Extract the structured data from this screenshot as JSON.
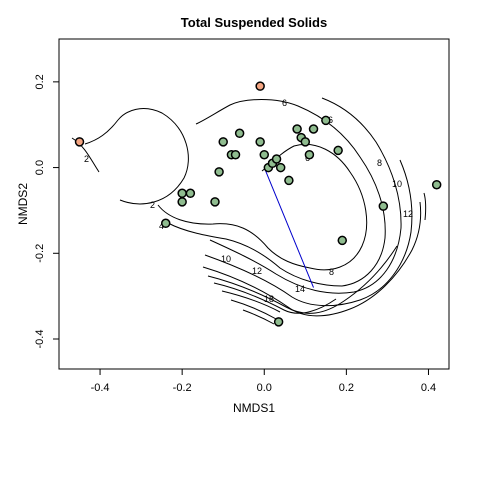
{
  "chart_data": {
    "type": "scatter",
    "title": "Total Suspended Solids",
    "xlabel": "NMDS1",
    "ylabel": "NMDS2",
    "xlim": [
      -0.5,
      0.45
    ],
    "ylim": [
      -0.47,
      0.3
    ],
    "xticks": [
      -0.4,
      -0.2,
      0.0,
      0.2,
      0.4
    ],
    "yticks": [
      -0.4,
      -0.2,
      0.0,
      0.2
    ],
    "xtick_labels": [
      "-0.4",
      "-0.2",
      "0.0",
      "0.2",
      "0.4"
    ],
    "ytick_labels": [
      "-0.4",
      "-0.2",
      "0.0",
      "0.2"
    ],
    "grid": false,
    "colors": {
      "site_fill": "#8fbc8f",
      "outlier_fill": "#f4a582",
      "point_edge": "#000000",
      "contour": "#000000",
      "vector": "#0000cc"
    },
    "points": [
      {
        "x": -0.2,
        "y": -0.08,
        "group": "site"
      },
      {
        "x": -0.2,
        "y": -0.06,
        "group": "site"
      },
      {
        "x": -0.18,
        "y": -0.06,
        "group": "site"
      },
      {
        "x": -0.24,
        "y": -0.13,
        "group": "site"
      },
      {
        "x": -0.12,
        "y": -0.08,
        "group": "site"
      },
      {
        "x": -0.11,
        "y": -0.01,
        "group": "site"
      },
      {
        "x": -0.1,
        "y": 0.06,
        "group": "site"
      },
      {
        "x": -0.08,
        "y": 0.03,
        "group": "site"
      },
      {
        "x": -0.07,
        "y": 0.03,
        "group": "site"
      },
      {
        "x": -0.06,
        "y": 0.08,
        "group": "site"
      },
      {
        "x": -0.01,
        "y": 0.06,
        "group": "site"
      },
      {
        "x": 0.0,
        "y": 0.03,
        "group": "site"
      },
      {
        "x": 0.01,
        "y": 0.0,
        "group": "site"
      },
      {
        "x": 0.02,
        "y": 0.01,
        "group": "site"
      },
      {
        "x": 0.03,
        "y": 0.02,
        "group": "site"
      },
      {
        "x": 0.04,
        "y": 0.0,
        "group": "site"
      },
      {
        "x": 0.06,
        "y": -0.03,
        "group": "site"
      },
      {
        "x": 0.08,
        "y": 0.09,
        "group": "site"
      },
      {
        "x": 0.09,
        "y": 0.07,
        "group": "site"
      },
      {
        "x": 0.1,
        "y": 0.06,
        "group": "site"
      },
      {
        "x": 0.12,
        "y": 0.09,
        "group": "site"
      },
      {
        "x": 0.11,
        "y": 0.03,
        "group": "site"
      },
      {
        "x": 0.15,
        "y": 0.11,
        "group": "site"
      },
      {
        "x": 0.18,
        "y": 0.04,
        "group": "site"
      },
      {
        "x": 0.19,
        "y": -0.17,
        "group": "site"
      },
      {
        "x": 0.29,
        "y": -0.09,
        "group": "site"
      },
      {
        "x": 0.42,
        "y": -0.04,
        "group": "site"
      },
      {
        "x": 0.035,
        "y": -0.36,
        "group": "site"
      },
      {
        "x": -0.45,
        "y": 0.06,
        "group": "outlier"
      },
      {
        "x": -0.01,
        "y": 0.19,
        "group": "outlier"
      }
    ],
    "vector": {
      "x0": 0.0,
      "y0": 0.0,
      "x1": 0.12,
      "y1": -0.28
    },
    "contour_labels": [
      "2",
      "2",
      "4",
      "6",
      "6",
      "6",
      "8",
      "8",
      "10",
      "10",
      "12",
      "12",
      "14",
      "18"
    ]
  }
}
